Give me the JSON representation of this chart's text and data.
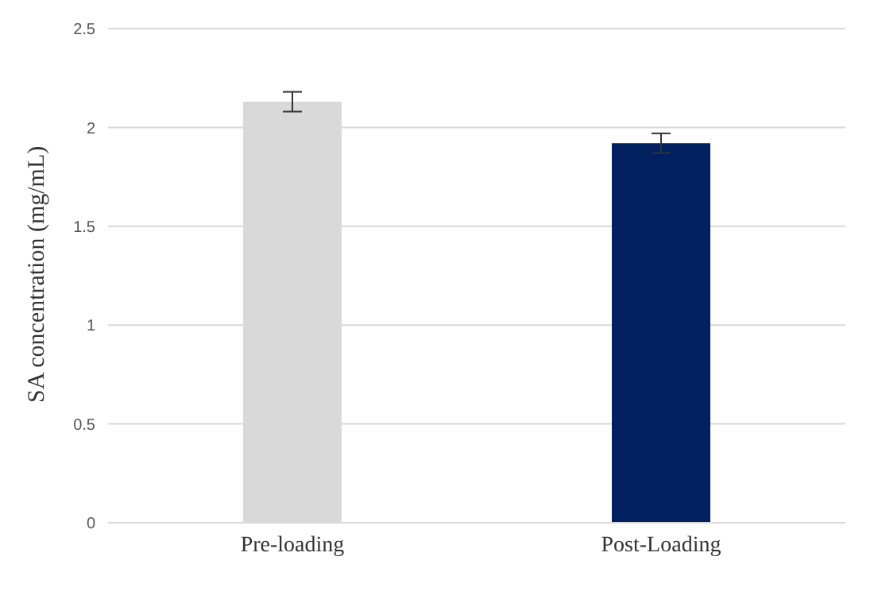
{
  "chart_data": {
    "type": "bar",
    "ylabel": "SA concentration (mg/mL)",
    "categories": [
      "Pre-loading",
      "Post-Loading"
    ],
    "values": [
      2.13,
      1.92
    ],
    "colors": [
      "#d9d9d9",
      "#002060"
    ],
    "errors": [
      0.05,
      0.05
    ],
    "ylim": [
      0,
      2.5
    ],
    "yticks": [
      0,
      0.5,
      1,
      1.5,
      2,
      2.5
    ],
    "grid": "y"
  }
}
